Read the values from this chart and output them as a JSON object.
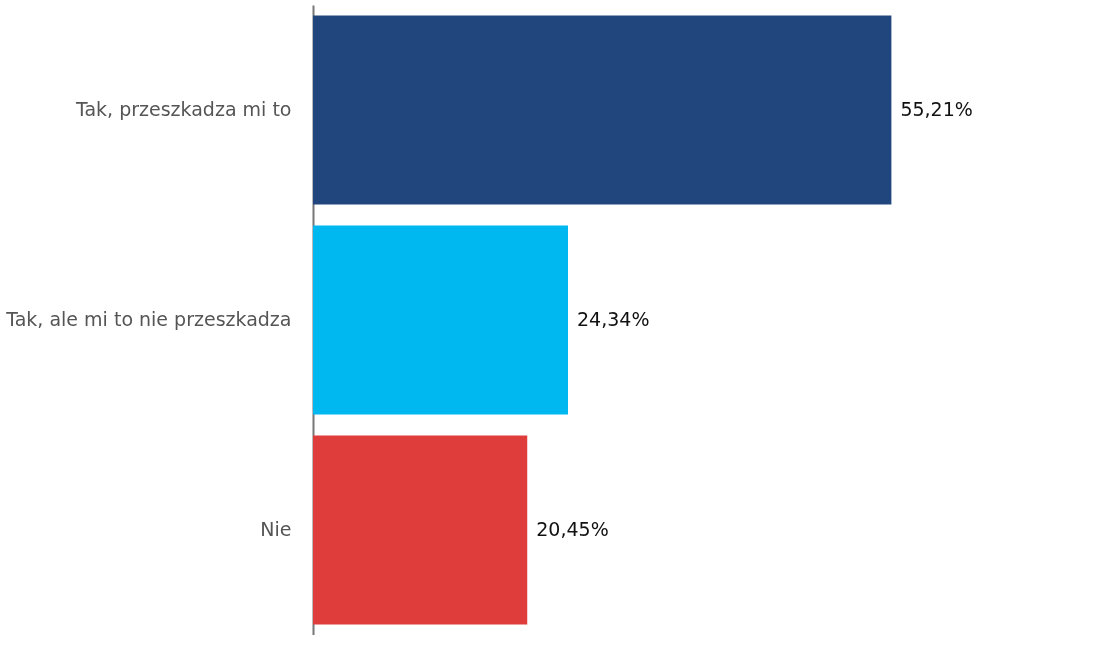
{
  "chart_data": {
    "type": "bar",
    "orientation": "horizontal",
    "categories": [
      "Tak, przeszkadza mi to",
      "Tak, ale mi to nie przeszkadza",
      "Nie"
    ],
    "values": [
      55.21,
      24.34,
      20.45
    ],
    "colors": [
      "#21467e",
      "#00b8f0",
      "#de3d3b"
    ],
    "value_labels": [
      "55,21%",
      "24,34%",
      "20,45%"
    ],
    "xlim": [
      0,
      63
    ],
    "tick_labels": "y",
    "grid": false
  }
}
